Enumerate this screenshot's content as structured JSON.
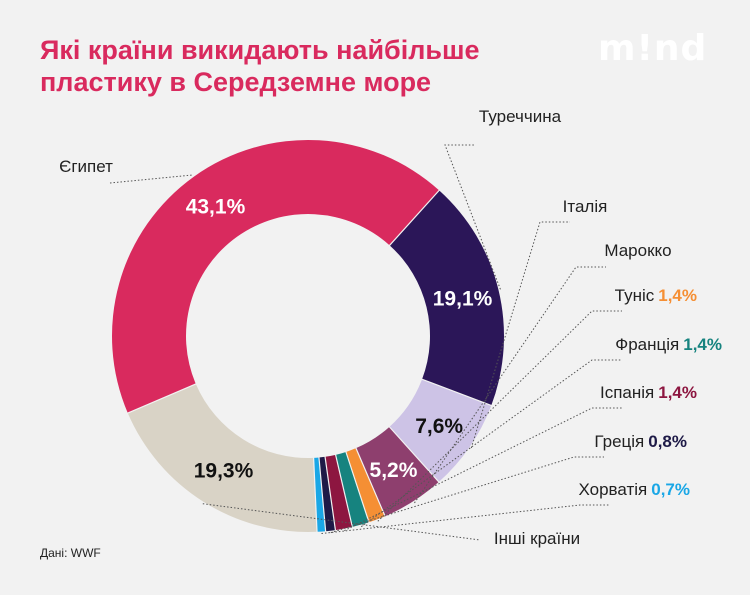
{
  "title": "Які країни викидають найбільше пластику в Середземне море",
  "logo": "m!nd",
  "source": "Дані: WWF",
  "chart_data": {
    "type": "pie",
    "donut": true,
    "series": [
      {
        "label": "Туреччина",
        "value": 19.1,
        "value_label": "19,1%",
        "color": "#2b1658",
        "label_position": "inside"
      },
      {
        "label": "Італія",
        "value": 7.6,
        "value_label": "7,6%",
        "color": "#cdc3e6",
        "label_position": "inside"
      },
      {
        "label": "Марокко",
        "value": 5.2,
        "value_label": "5,2%",
        "color": "#8e3f6e",
        "label_position": "inside"
      },
      {
        "label": "Туніс",
        "value": 1.4,
        "value_label": "1,4%",
        "color": "#f58f34",
        "label_position": "outside"
      },
      {
        "label": "Франція",
        "value": 1.4,
        "value_label": "1,4%",
        "color": "#16837f",
        "label_position": "outside"
      },
      {
        "label": "Іспанія",
        "value": 1.4,
        "value_label": "1,4%",
        "color": "#8d1640",
        "label_position": "outside"
      },
      {
        "label": "Греція",
        "value": 0.8,
        "value_label": "0,8%",
        "color": "#1e1a47",
        "label_position": "outside"
      },
      {
        "label": "Хорватія",
        "value": 0.7,
        "value_label": "0,7%",
        "color": "#1aa7e6",
        "label_position": "outside"
      },
      {
        "label": "Інші країни",
        "value": 19.3,
        "value_label": "19,3%",
        "color": "#d9d3c6",
        "label_position": "inside"
      },
      {
        "label": "Єгипет",
        "value": 43.1,
        "value_label": "43,1%",
        "color": "#d92a5e",
        "label_position": "inside"
      }
    ]
  }
}
